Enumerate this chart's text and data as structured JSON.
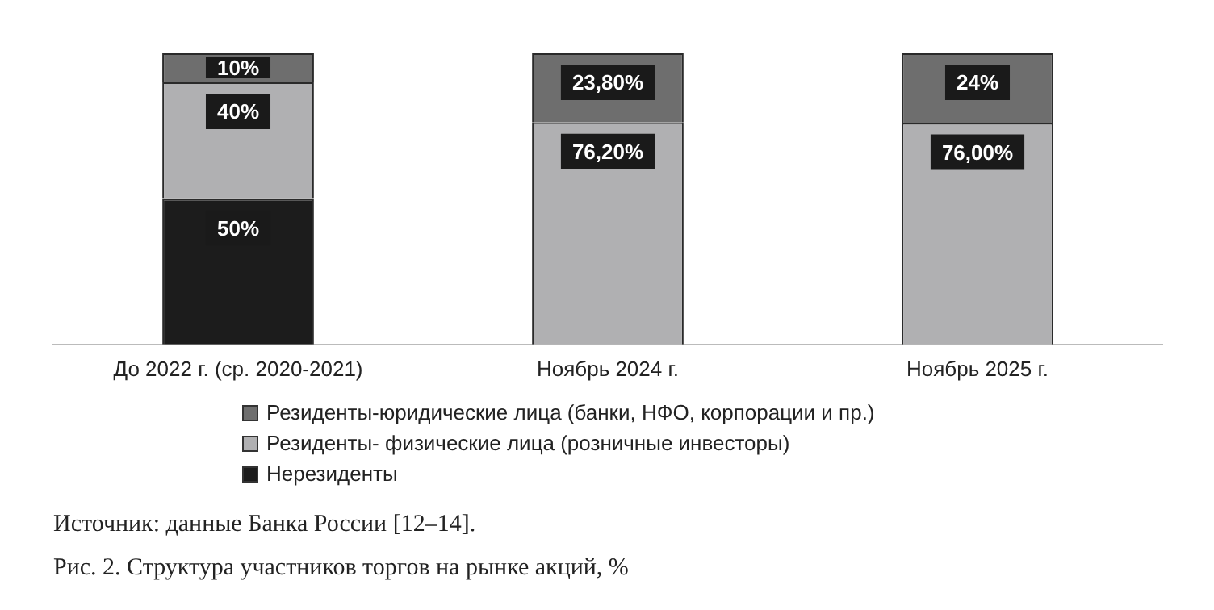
{
  "chart_data": {
    "type": "bar",
    "stacked": true,
    "tick_labels": "x",
    "grid": false,
    "legend": "bottom",
    "categories": [
      "До 2022 г. (ср. 2020-2021)",
      "Ноябрь 2024 г.",
      "Ноябрь 2025 г."
    ],
    "series": [
      {
        "name": "Нерезиденты",
        "color": "#1c1c1c",
        "values": [
          50,
          0,
          0
        ],
        "value_labels": [
          "50%",
          null,
          null
        ]
      },
      {
        "name": "Резиденты- физические лица (розничные инвесторы)",
        "color": "#b0b0b2",
        "values": [
          40,
          76.2,
          76
        ],
        "value_labels": [
          "40%",
          "76,20%",
          "76,00%"
        ]
      },
      {
        "name": "Резиденты-юридические лица (банки, НФО, корпорации и пр.)",
        "color": "#6e6e6e",
        "values": [
          10,
          23.8,
          24
        ],
        "value_labels": [
          "10%",
          "23,80%",
          "24%"
        ]
      }
    ],
    "annotations": [
      "Источник: данные Банка России [12–14].",
      "Рис. 2. Структура участников торгов на рынке акций, %"
    ]
  }
}
